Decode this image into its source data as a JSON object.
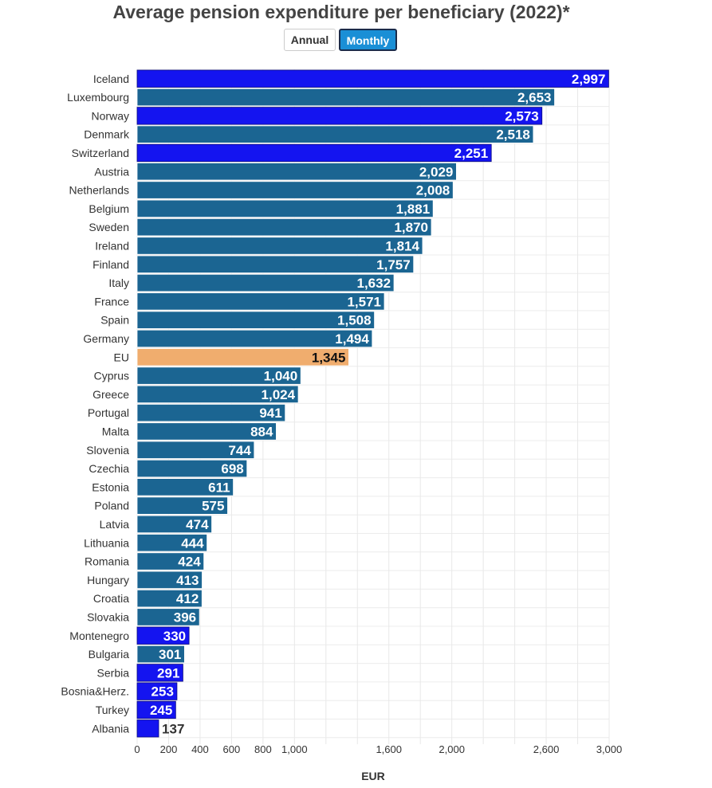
{
  "title": "Average pension expenditure per beneficiary (2022)*",
  "controls": {
    "annual_label": "Annual",
    "monthly_label": "Monthly",
    "selected": "Monthly"
  },
  "colors": {
    "eu_member": "#1b6592",
    "non_eu": "#1414f0",
    "eu_average": "#f0ad6e",
    "label_on_dark": "#ffffff",
    "label_on_light": "#111111",
    "label_outside": "#333333"
  },
  "chart_data": {
    "type": "bar",
    "orientation": "horizontal",
    "title": "Average pension expenditure per beneficiary (2022)*",
    "xlabel": "EUR",
    "ylabel": "",
    "xlim": [
      0,
      3000
    ],
    "xticks": [
      {
        "value": 0,
        "label": "0"
      },
      {
        "value": 200,
        "label": "200"
      },
      {
        "value": 400,
        "label": "400"
      },
      {
        "value": 600,
        "label": "600"
      },
      {
        "value": 800,
        "label": "800"
      },
      {
        "value": 1000,
        "label": "1,000"
      },
      {
        "value": 1600,
        "label": "1,600"
      },
      {
        "value": 2000,
        "label": "2,000"
      },
      {
        "value": 2600,
        "label": "2,600"
      },
      {
        "value": 3000,
        "label": "3,000"
      }
    ],
    "gridlines": [
      0,
      200,
      400,
      600,
      800,
      1000,
      1200,
      1400,
      1600,
      1800,
      2000,
      2200,
      2400,
      2600,
      2800,
      3000
    ],
    "grid": true,
    "categories": [
      "Iceland",
      "Luxembourg",
      "Norway",
      "Denmark",
      "Switzerland",
      "Austria",
      "Netherlands",
      "Belgium",
      "Sweden",
      "Ireland",
      "Finland",
      "Italy",
      "France",
      "Spain",
      "Germany",
      "EU",
      "Cyprus",
      "Greece",
      "Portugal",
      "Malta",
      "Slovenia",
      "Czechia",
      "Estonia",
      "Poland",
      "Latvia",
      "Lithuania",
      "Romania",
      "Hungary",
      "Croatia",
      "Slovakia",
      "Montenegro",
      "Bulgaria",
      "Serbia",
      "Bosnia&Herz.",
      "Turkey",
      "Albania"
    ],
    "values": [
      2997,
      2653,
      2573,
      2518,
      2251,
      2029,
      2008,
      1881,
      1870,
      1814,
      1757,
      1632,
      1571,
      1508,
      1494,
      1345,
      1040,
      1024,
      941,
      884,
      744,
      698,
      611,
      575,
      474,
      444,
      424,
      413,
      412,
      396,
      330,
      301,
      291,
      253,
      245,
      137
    ],
    "value_labels": [
      "2,997",
      "2,653",
      "2,573",
      "2,518",
      "2,251",
      "2,029",
      "2,008",
      "1,881",
      "1,870",
      "1,814",
      "1,757",
      "1,632",
      "1,571",
      "1,508",
      "1,494",
      "1,345",
      "1,040",
      "1,024",
      "941",
      "884",
      "744",
      "698",
      "611",
      "575",
      "474",
      "444",
      "424",
      "413",
      "412",
      "396",
      "330",
      "301",
      "291",
      "253",
      "245",
      "137"
    ],
    "groups": [
      "non_eu",
      "eu_member",
      "non_eu",
      "eu_member",
      "non_eu",
      "eu_member",
      "eu_member",
      "eu_member",
      "eu_member",
      "eu_member",
      "eu_member",
      "eu_member",
      "eu_member",
      "eu_member",
      "eu_member",
      "eu_average",
      "eu_member",
      "eu_member",
      "eu_member",
      "eu_member",
      "eu_member",
      "eu_member",
      "eu_member",
      "eu_member",
      "eu_member",
      "eu_member",
      "eu_member",
      "eu_member",
      "eu_member",
      "eu_member",
      "non_eu",
      "eu_member",
      "non_eu",
      "non_eu",
      "non_eu",
      "non_eu"
    ]
  }
}
